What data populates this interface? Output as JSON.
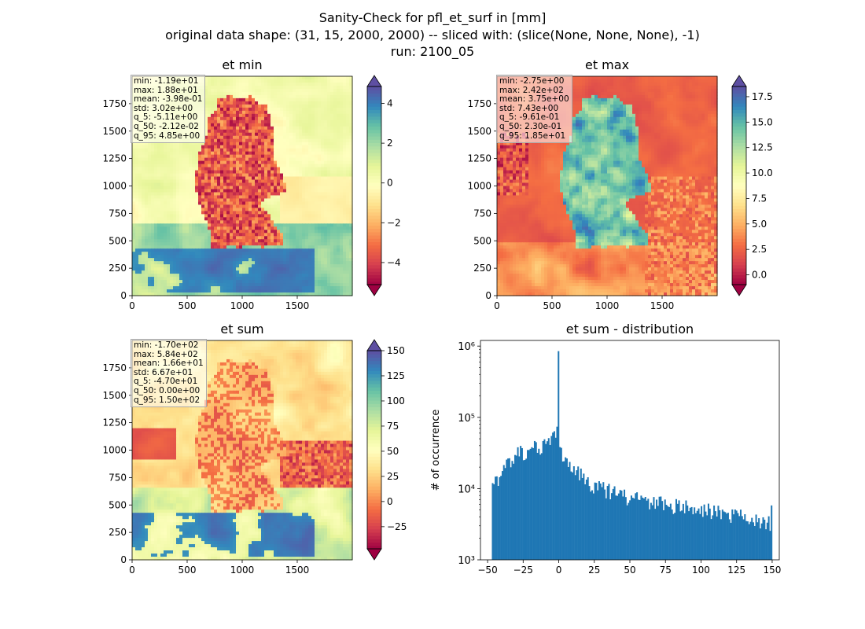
{
  "figure": {
    "title_lines": [
      "Sanity-Check for pfl_et_surf in [mm]",
      "original data shape: (31, 15, 2000, 2000) -- sliced with: (slice(None, None, None), -1)",
      "run: 2100_05"
    ]
  },
  "panels": [
    {
      "title": "et min",
      "stats": [
        "min: -1.19e+01",
        "max: 1.88e+01",
        "mean: -3.98e-01",
        "std: 3.02e+00",
        "q_5: -5.11e+00",
        "q_50: -2.12e-02",
        "q_95: 4.85e+00"
      ],
      "colorbar": {
        "ticks": [
          -4,
          -2,
          0,
          2,
          4
        ],
        "labels": [
          "−4",
          "−2",
          "0",
          "2",
          "4"
        ],
        "range": [
          -5.11,
          4.85
        ],
        "extend": "both",
        "colormap": "Spectral"
      }
    },
    {
      "title": "et max",
      "stats": [
        "min: -2.75e+00",
        "max: 2.42e+02",
        "mean: 3.75e+00",
        "std: 7.43e+00",
        "q_5: -9.61e-01",
        "q_50: 2.30e-01",
        "q_95: 1.85e+01"
      ],
      "colorbar": {
        "ticks": [
          0,
          2.5,
          5,
          7.5,
          10,
          12.5,
          15,
          17.5
        ],
        "labels": [
          "0.0",
          "2.5",
          "5.0",
          "7.5",
          "10.0",
          "12.5",
          "15.0",
          "17.5"
        ],
        "range": [
          -0.961,
          18.5
        ],
        "extend": "both",
        "colormap": "Spectral"
      }
    },
    {
      "title": "et sum",
      "stats": [
        "min: -1.70e+02",
        "max: 5.84e+02",
        "mean: 1.66e+01",
        "std: 6.67e+01",
        "q_5: -4.70e+01",
        "q_50: 0.00e+00",
        "q_95: 1.50e+02"
      ],
      "colorbar": {
        "ticks": [
          -25,
          0,
          25,
          50,
          75,
          100,
          125,
          150
        ],
        "labels": [
          "−25",
          "0",
          "25",
          "50",
          "75",
          "100",
          "125",
          "150"
        ],
        "range": [
          -47,
          150
        ],
        "extend": "both",
        "colormap": "Spectral"
      }
    }
  ],
  "map_axes": {
    "xticks": [
      0,
      500,
      1000,
      1500
    ],
    "xlabels": [
      "0",
      "500",
      "1000",
      "1500"
    ],
    "yticks": [
      0,
      250,
      500,
      750,
      1000,
      1250,
      1500,
      1750
    ],
    "ylabels": [
      "0",
      "250",
      "500",
      "750",
      "1000",
      "1250",
      "1500",
      "1750"
    ],
    "extent": [
      0,
      2000,
      0,
      2000
    ]
  },
  "chart_data": {
    "type": "bar",
    "title": "et sum - distribution",
    "xlabel": "",
    "ylabel": "# of occurrence",
    "yscale": "log",
    "xlim": [
      -55,
      155
    ],
    "ylim": [
      1000,
      1200000
    ],
    "xticks": [
      -50,
      -25,
      0,
      25,
      50,
      75,
      100,
      125,
      150
    ],
    "xtick_labels": [
      "−50",
      "−25",
      "0",
      "25",
      "50",
      "75",
      "100",
      "125",
      "150"
    ],
    "yticks": [
      1000,
      10000,
      100000,
      1000000
    ],
    "ytick_labels": [
      "10³",
      "10⁴",
      "10⁵",
      "10⁶"
    ],
    "bin_range": [
      -47,
      150
    ],
    "bin_count": 200,
    "color": "#1f77b4",
    "peak": {
      "x": 0,
      "count": 850000
    },
    "profile_points": [
      [
        -47,
        11500
      ],
      [
        -43,
        12500
      ],
      [
        -40,
        15000
      ],
      [
        -37,
        20000
      ],
      [
        -33,
        27000
      ],
      [
        -30,
        32000
      ],
      [
        -25,
        34000
      ],
      [
        -20,
        36000
      ],
      [
        -15,
        39000
      ],
      [
        -10,
        42000
      ],
      [
        -5,
        50000
      ],
      [
        -2,
        62000
      ],
      [
        -1,
        70000
      ],
      [
        1,
        42000
      ],
      [
        3,
        28000
      ],
      [
        6,
        23000
      ],
      [
        10,
        19000
      ],
      [
        15,
        16000
      ],
      [
        20,
        13000
      ],
      [
        25,
        11000
      ],
      [
        30,
        10000
      ],
      [
        40,
        8500
      ],
      [
        50,
        7500
      ],
      [
        60,
        6800
      ],
      [
        70,
        6300
      ],
      [
        80,
        5800
      ],
      [
        90,
        5400
      ],
      [
        100,
        5000
      ],
      [
        110,
        4700
      ],
      [
        120,
        4400
      ],
      [
        130,
        4200
      ],
      [
        140,
        3700
      ],
      [
        145,
        3400
      ],
      [
        149,
        3200
      ],
      [
        150,
        5800
      ]
    ]
  }
}
